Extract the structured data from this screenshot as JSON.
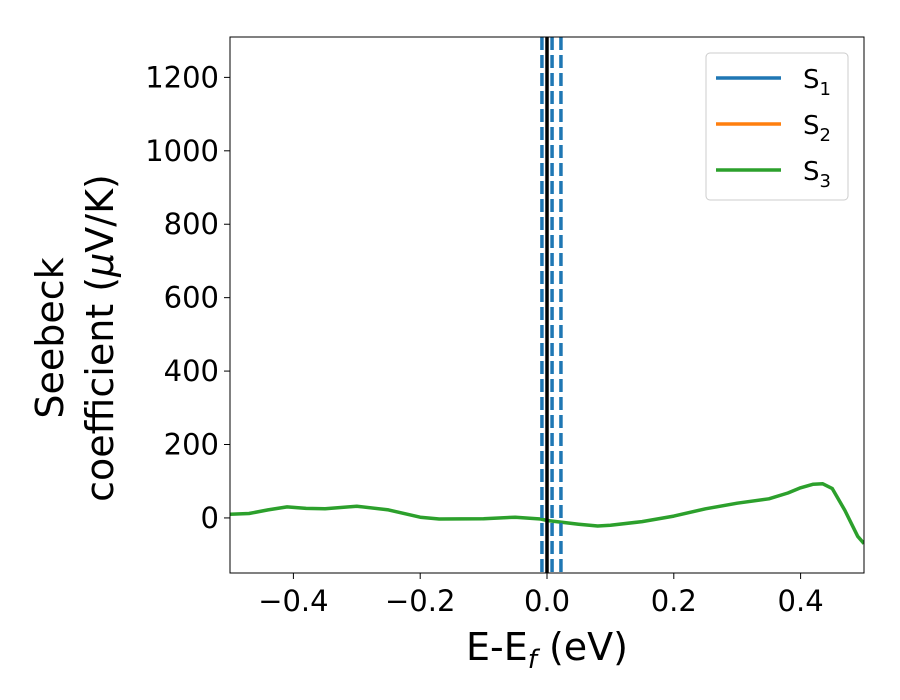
{
  "chart_data": {
    "type": "line",
    "xlabel": "E-E",
    "xlabel_sub": "f",
    "xlabel_unit": " (eV)",
    "ylabel_line1": "Seebeck",
    "ylabel_line2": "coefficient  (",
    "ylabel_mu": "μ",
    "ylabel_unit": "V/K)",
    "xlim": [
      -0.5,
      0.5
    ],
    "ylim": [
      -150,
      1310
    ],
    "xticks": [
      -0.4,
      -0.2,
      0.0,
      0.2,
      0.4
    ],
    "xtick_labels": [
      "−0.4",
      "−0.2",
      "0.0",
      "0.2",
      "0.4"
    ],
    "yticks": [
      0,
      200,
      400,
      600,
      800,
      1000,
      1200
    ],
    "ytick_labels": [
      "0",
      "200",
      "400",
      "600",
      "800",
      "1000",
      "1200"
    ],
    "grid": false,
    "legend_position": "top-right",
    "series": [
      {
        "name": "S",
        "sub": "1",
        "color": "#1f77b4",
        "x": [],
        "y": []
      },
      {
        "name": "S",
        "sub": "2",
        "color": "#ff7f0e",
        "x": [],
        "y": []
      },
      {
        "name": "S",
        "sub": "3",
        "color": "#2ca02c",
        "x": [
          -0.5,
          -0.47,
          -0.44,
          -0.41,
          -0.38,
          -0.35,
          -0.3,
          -0.25,
          -0.2,
          -0.17,
          -0.1,
          -0.05,
          -0.01,
          0.0,
          0.05,
          0.08,
          0.1,
          0.15,
          0.2,
          0.25,
          0.3,
          0.35,
          0.38,
          0.4,
          0.42,
          0.435,
          0.45,
          0.47,
          0.49,
          0.5
        ],
        "y": [
          10,
          12,
          22,
          30,
          26,
          25,
          32,
          22,
          2,
          -3,
          -2,
          2,
          -3,
          -7,
          -17,
          -22,
          -20,
          -10,
          5,
          25,
          40,
          52,
          68,
          82,
          92,
          93,
          80,
          20,
          -50,
          -70
        ]
      }
    ],
    "vertical_lines": [
      {
        "x": 0.0,
        "color": "#000000",
        "style": "solid"
      },
      {
        "x": -0.008,
        "color": "#1f77b4",
        "style": "dashed"
      },
      {
        "x": 0.008,
        "color": "#1f77b4",
        "style": "dashed"
      },
      {
        "x": 0.022,
        "color": "#1f77b4",
        "style": "dashed"
      }
    ]
  }
}
